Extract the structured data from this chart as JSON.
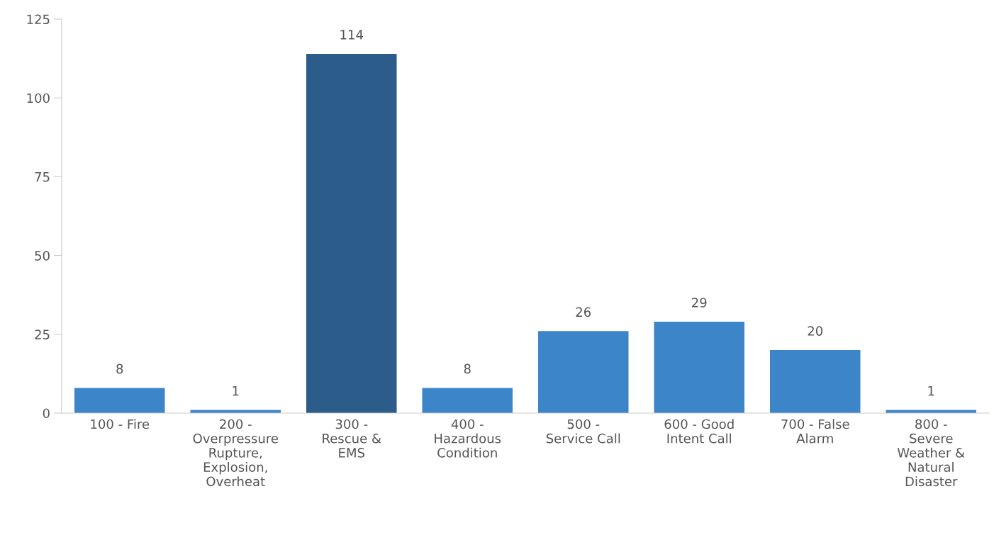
{
  "chart_data": {
    "type": "bar",
    "categories": [
      "100 - Fire",
      "200 -\nOverpressure\nRupture,\nExplosion,\nOverheat",
      "300 -\nRescue &\nEMS",
      "400 -\nHazardous\nCondition",
      "500 -\nService Call",
      "600 - Good\nIntent Call",
      "700 - False\nAlarm",
      "800 -\nSevere\nWeather &\nNatural\nDisaster"
    ],
    "values": [
      8,
      1,
      114,
      8,
      26,
      29,
      20,
      1
    ],
    "colors": [
      "#3d85c9",
      "#3d85c9",
      "#2b5c8a",
      "#3d85c9",
      "#3d85c9",
      "#3d85c9",
      "#3d85c9",
      "#3d85c9"
    ],
    "ylim": [
      0,
      125
    ],
    "yticks": [
      0,
      25,
      50,
      75,
      100,
      125
    ],
    "data_labels": true,
    "grid": false,
    "legend": false
  }
}
